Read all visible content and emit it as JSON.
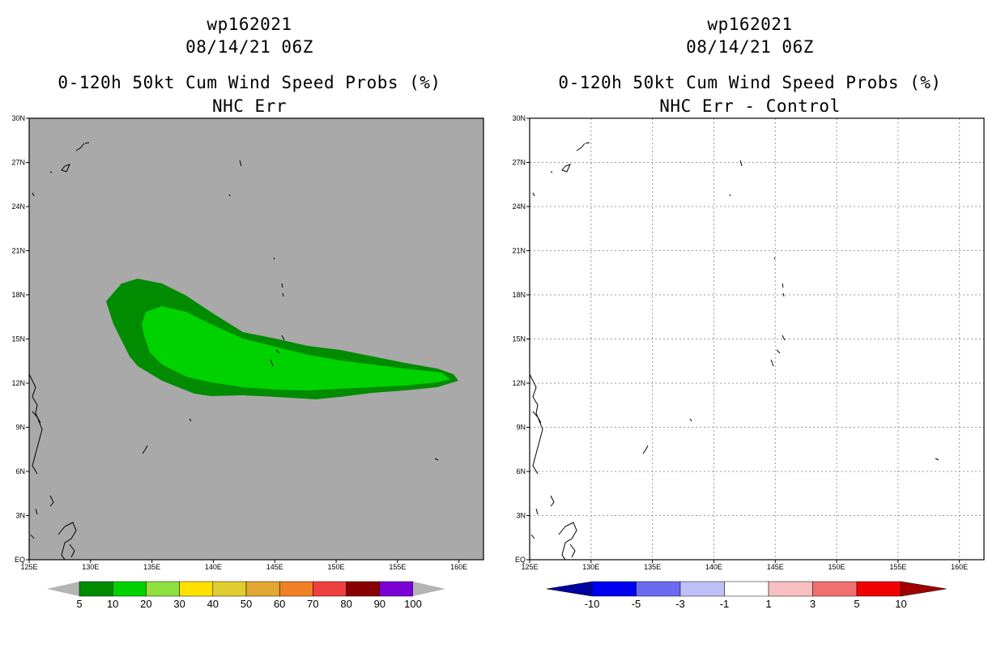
{
  "left_panel": {
    "storm_id": "wp162021",
    "datetime": "08/14/21 06Z",
    "product": "0-120h 50kt Cum Wind Speed Probs (%)",
    "subtitle": "NHC Err",
    "colorbar": {
      "labels": [
        "5",
        "10",
        "20",
        "30",
        "40",
        "50",
        "60",
        "70",
        "80",
        "90",
        "100"
      ],
      "colors": [
        "#008b00",
        "#00d200",
        "#90e040",
        "#ffe000",
        "#e0cd30",
        "#e0a830",
        "#ef8026",
        "#ef4040",
        "#880000",
        "#7a00d6"
      ],
      "end_color": "#b4b4b4"
    }
  },
  "right_panel": {
    "storm_id": "wp162021",
    "datetime": "08/14/21 06Z",
    "product": "0-120h 50kt Cum Wind Speed Probs (%)",
    "subtitle": "NHC Err - Control",
    "colorbar": {
      "labels": [
        "-10",
        "-5",
        "-3",
        "-1",
        "1",
        "3",
        "5",
        "10"
      ],
      "colors": [
        "#0000a0",
        "#0000f0",
        "#6a6af0",
        "#c0c0f8",
        "#ffffff",
        "#f8c0c0",
        "#f07070",
        "#f00000",
        "#a00000"
      ]
    }
  },
  "map": {
    "lat_labels": [
      "30N",
      "27N",
      "24N",
      "21N",
      "18N",
      "15N",
      "12N",
      "9N",
      "6N",
      "3N",
      "EQ"
    ],
    "lon_labels": [
      "125E",
      "130E",
      "135E",
      "140E",
      "145E",
      "150E",
      "155E",
      "160E"
    ],
    "lat_values": [
      30,
      27,
      24,
      21,
      18,
      15,
      12,
      9,
      6,
      3,
      0
    ],
    "lon_values": [
      125,
      130,
      135,
      140,
      145,
      150,
      155,
      160
    ],
    "lat_range": [
      0,
      30
    ],
    "lon_range": [
      125,
      162
    ],
    "background_color": "#a9a9a9",
    "prob_outer_color": "#008b00",
    "prob_inner_color": "#00d200"
  }
}
